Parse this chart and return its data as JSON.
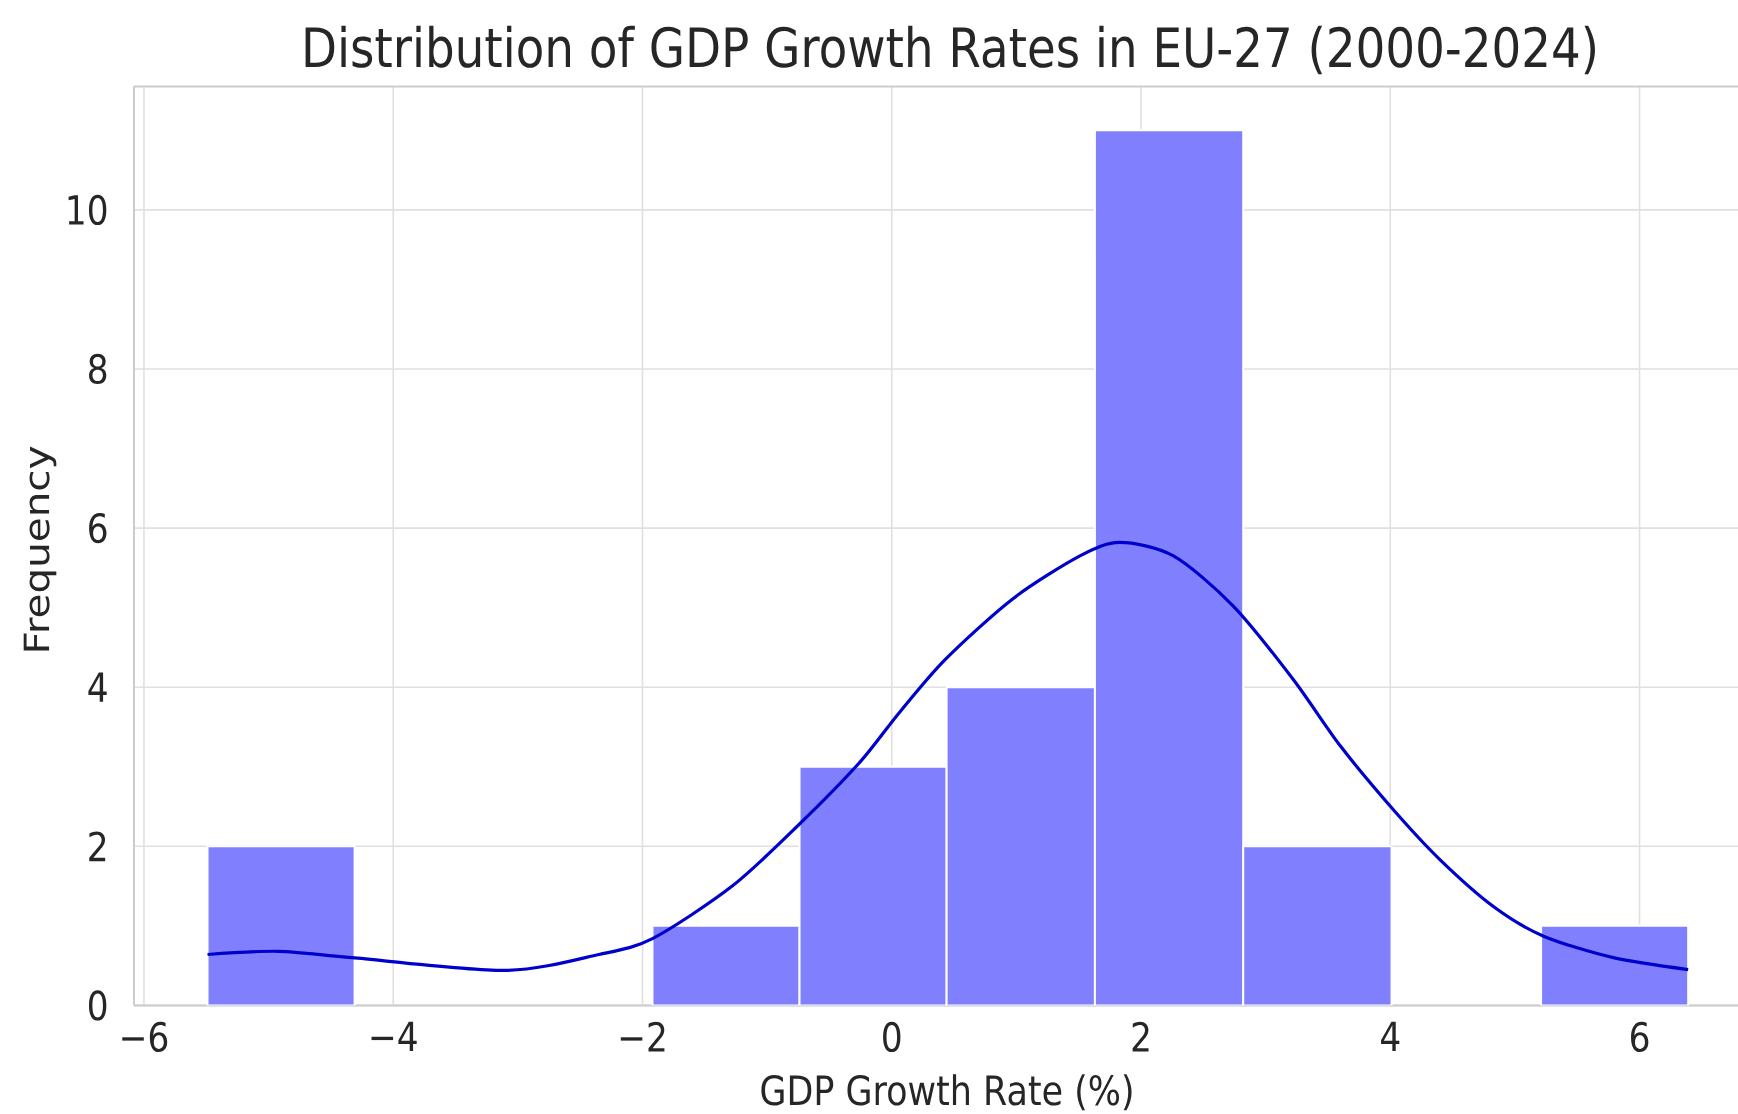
{
  "chart_data": {
    "type": "histogram",
    "title": "Distribution of GDP Growth Rates in EU-27 (2000-2024)",
    "xlabel": "GDP Growth Rate (%)",
    "ylabel": "Frequency",
    "xlim": [
      -6.08,
      6.79
    ],
    "ylim": [
      0,
      11.55
    ],
    "xticks": [
      {
        "value": -6,
        "label": "−6"
      },
      {
        "value": -4,
        "label": "−4"
      },
      {
        "value": -2,
        "label": "−2"
      },
      0,
      2,
      4,
      6
    ],
    "yticks": [
      0,
      2,
      4,
      6,
      8,
      10
    ],
    "grid": true,
    "series": [
      {
        "color": "#8080ff",
        "bins": [
          -5.49,
          -4.31,
          -1.92,
          -0.74,
          0.44,
          1.63,
          2.82,
          4.01,
          5.21,
          6.39
        ],
        "values": [
          2,
          0,
          1,
          3,
          4,
          11,
          2,
          0,
          1
        ]
      },
      {
        "type": "line",
        "color": "#0000cc",
        "x": [
          -5.49,
          -4.92,
          -4.33,
          -3.1,
          -2.35,
          -1.92,
          -1.28,
          -0.74,
          -0.26,
          0.06,
          0.43,
          0.97,
          1.51,
          1.83,
          2.26,
          2.74,
          3.22,
          3.6,
          4.03,
          4.4,
          4.83,
          5.23,
          5.79,
          6.39
        ],
        "values": [
          0.64,
          0.68,
          0.6,
          0.44,
          0.64,
          0.84,
          1.5,
          2.28,
          3.05,
          3.68,
          4.35,
          5.11,
          5.65,
          5.82,
          5.65,
          5.02,
          4.1,
          3.26,
          2.45,
          1.83,
          1.24,
          0.87,
          0.6,
          0.45
        ]
      }
    ]
  }
}
